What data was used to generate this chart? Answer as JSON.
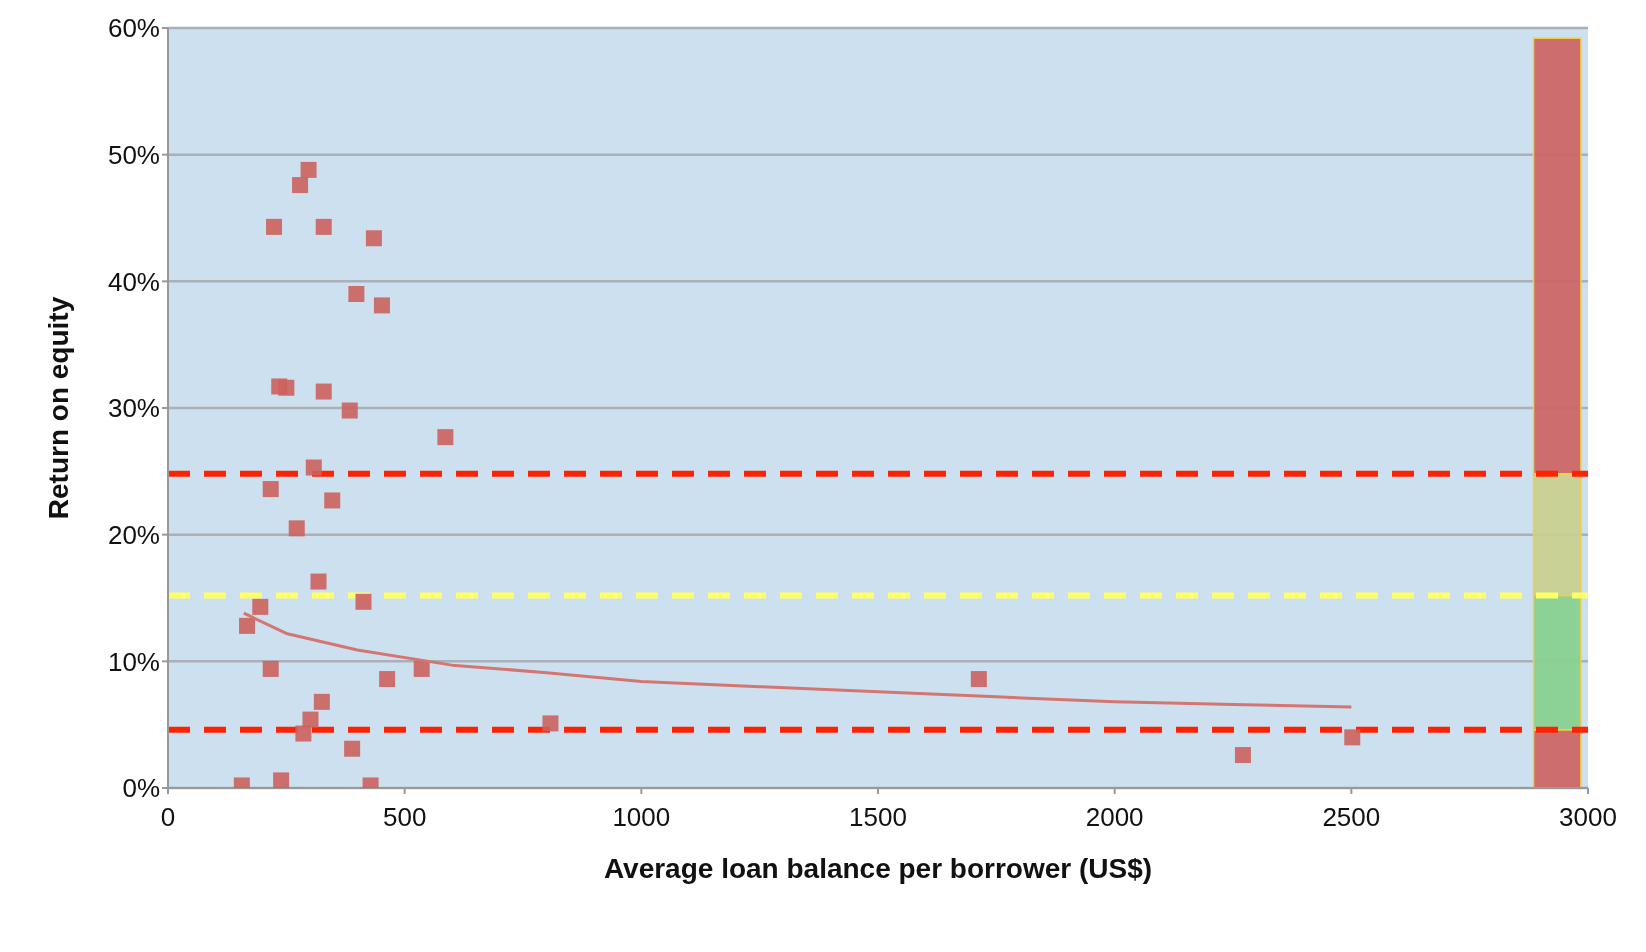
{
  "chart_data": {
    "type": "scatter",
    "xlabel": "Average loan balance per borrower (US$)",
    "ylabel": "Return on equity",
    "xlim": [
      0,
      3000
    ],
    "xticks": [
      0,
      500,
      1000,
      1500,
      2000,
      2500,
      3000
    ],
    "ylim": [
      0,
      60
    ],
    "yticks": [
      {
        "value": 0,
        "label": "0%"
      },
      {
        "value": 10,
        "label": "10%"
      },
      {
        "value": 20,
        "label": "20%"
      },
      {
        "value": 30,
        "label": "30%"
      },
      {
        "value": 40,
        "label": "40%"
      },
      {
        "value": 50,
        "label": "50%"
      },
      {
        "value": 60,
        "label": "60%"
      }
    ],
    "grid": "y",
    "legend": false,
    "marker": "square",
    "stacked": true,
    "series": [
      {
        "color": "#cc625c",
        "x": [
          297,
          279,
          224,
          329,
          435,
          398,
          452,
          235,
          250,
          329,
          384,
          586,
          308,
          217,
          347,
          272,
          318,
          195,
          413,
          167,
          217,
          463,
          536,
          1713,
          325,
          301,
          286,
          808,
          389,
          2271,
          2502,
          156,
          239,
          428
        ],
        "values": [
          48.8,
          47.6,
          44.3,
          44.3,
          43.4,
          39.0,
          38.1,
          31.7,
          31.6,
          31.3,
          29.8,
          27.7,
          25.3,
          23.6,
          22.7,
          20.5,
          16.3,
          14.3,
          14.7,
          12.8,
          9.4,
          8.6,
          9.4,
          8.6,
          6.8,
          5.4,
          4.3,
          5.1,
          3.1,
          2.6,
          4.0,
          0.2,
          0.6,
          0.2
        ]
      },
      {
        "type": "line",
        "marker": "none",
        "color": "#d57570",
        "x": [
          160,
          250,
          400,
          600,
          800,
          1000,
          1250,
          1500,
          1750,
          2000,
          2250,
          2500
        ],
        "values": [
          13.8,
          12.2,
          10.9,
          9.7,
          9.1,
          8.4,
          8.0,
          7.6,
          7.2,
          6.8,
          6.6,
          6.4
        ]
      },
      {
        "type": "bar",
        "color": "#cc6666",
        "x": [
          2935
        ],
        "values": [
          4.6
        ]
      },
      {
        "type": "bar",
        "color": "#88d090",
        "x": [
          2935
        ],
        "values": [
          10.6
        ]
      },
      {
        "type": "bar",
        "color": "#c8d090",
        "x": [
          2935
        ],
        "values": [
          9.6
        ]
      },
      {
        "type": "bar",
        "color": "#cc6666",
        "x": [
          2935
        ],
        "values": [
          34.4
        ]
      }
    ],
    "ref_lines": [
      {
        "axis": "y",
        "value": 24.8,
        "color": "#ff2200",
        "line_style": "dashed"
      },
      {
        "axis": "y",
        "value": 15.2,
        "color": "#ffff66",
        "line_style": "dashed"
      },
      {
        "axis": "y",
        "value": 4.6,
        "color": "#ff2200",
        "line_style": "dashed"
      }
    ]
  }
}
